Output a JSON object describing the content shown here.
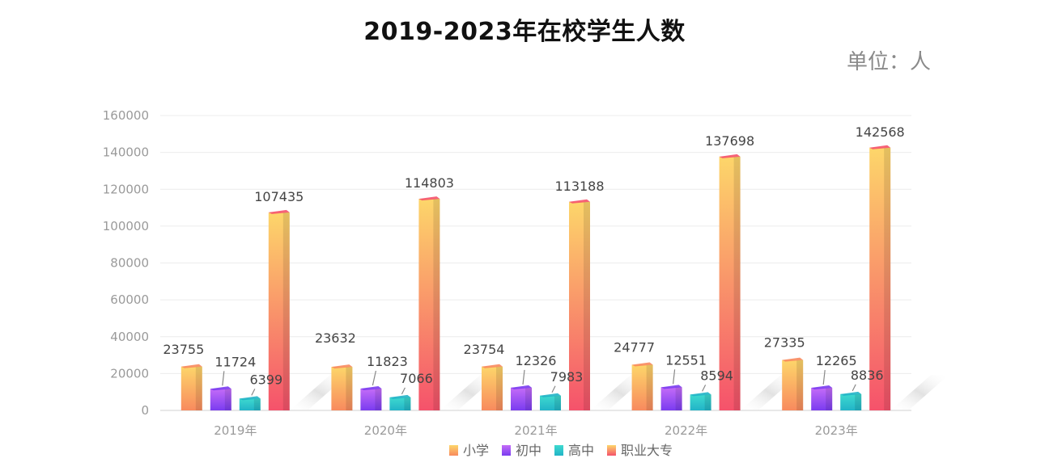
{
  "title": "2019-2023年在校学生人数",
  "unit_label": "单位：人",
  "chart_data": {
    "type": "bar",
    "title": "2019-2023年在校学生人数",
    "xlabel": "",
    "ylabel": "",
    "categories": [
      "2019年",
      "2020年",
      "2021年",
      "2022年",
      "2023年"
    ],
    "ylim": [
      0,
      160000
    ],
    "yticks": [
      0,
      20000,
      40000,
      60000,
      80000,
      100000,
      120000,
      140000,
      160000
    ],
    "grid": true,
    "legend_position": "bottom",
    "series": [
      {
        "name": "小学",
        "values": [
          23755,
          23632,
          23754,
          24777,
          27335
        ],
        "color_top": "#fdd66a",
        "color_bottom": "#f88a5e"
      },
      {
        "name": "初中",
        "values": [
          11724,
          11823,
          12326,
          12551,
          12265
        ],
        "color_top": "#c46cf7",
        "color_bottom": "#7a3cf0"
      },
      {
        "name": "高中",
        "values": [
          6399,
          7066,
          7983,
          8594,
          8836
        ],
        "color_top": "#3ed9cf",
        "color_bottom": "#22b4c7"
      },
      {
        "name": "职业大专",
        "values": [
          107435,
          114803,
          113188,
          137698,
          142568
        ],
        "color_top": "#fdd66a",
        "color_bottom": "#f5526b"
      }
    ]
  }
}
